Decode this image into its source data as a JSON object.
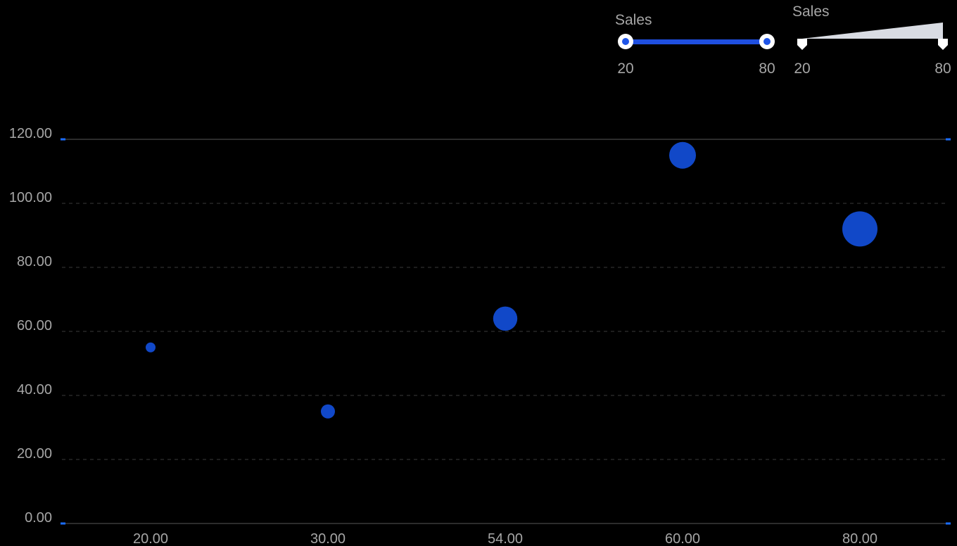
{
  "legends": {
    "color_legend": {
      "title": "Sales",
      "min_label": "20",
      "max_label": "80",
      "range": [
        20,
        80
      ],
      "bar_color": "#1f4fe0",
      "handle_color": "#1f55e8"
    },
    "size_legend": {
      "title": "Sales",
      "min_label": "20",
      "max_label": "80",
      "range": [
        20,
        80
      ],
      "fill_color": "#d9dce3"
    }
  },
  "colors": {
    "background": "#000000",
    "point": "#1148c8",
    "axis_line": "#3a3a3a",
    "grid_line": "#3a3a3a",
    "tick_text": "#a6a6a6",
    "axis_tick_mark": "#1a6cff"
  },
  "chart_data": {
    "type": "scatter",
    "title": "",
    "xlabel": "",
    "ylabel": "",
    "x_categories": [
      "20.00",
      "30.00",
      "54.00",
      "60.00",
      "80.00"
    ],
    "y_ticks": [
      "0.00",
      "20.00",
      "40.00",
      "60.00",
      "80.00",
      "100.00",
      "120.00"
    ],
    "ylim": [
      0,
      120
    ],
    "grid": true,
    "legend_position": "top-right",
    "points": [
      {
        "x": "20.00",
        "y": 55,
        "size": 20
      },
      {
        "x": "30.00",
        "y": 35,
        "size": 30
      },
      {
        "x": "54.00",
        "y": 64,
        "size": 54
      },
      {
        "x": "60.00",
        "y": 115,
        "size": 60
      },
      {
        "x": "80.00",
        "y": 92,
        "size": 80
      }
    ]
  }
}
